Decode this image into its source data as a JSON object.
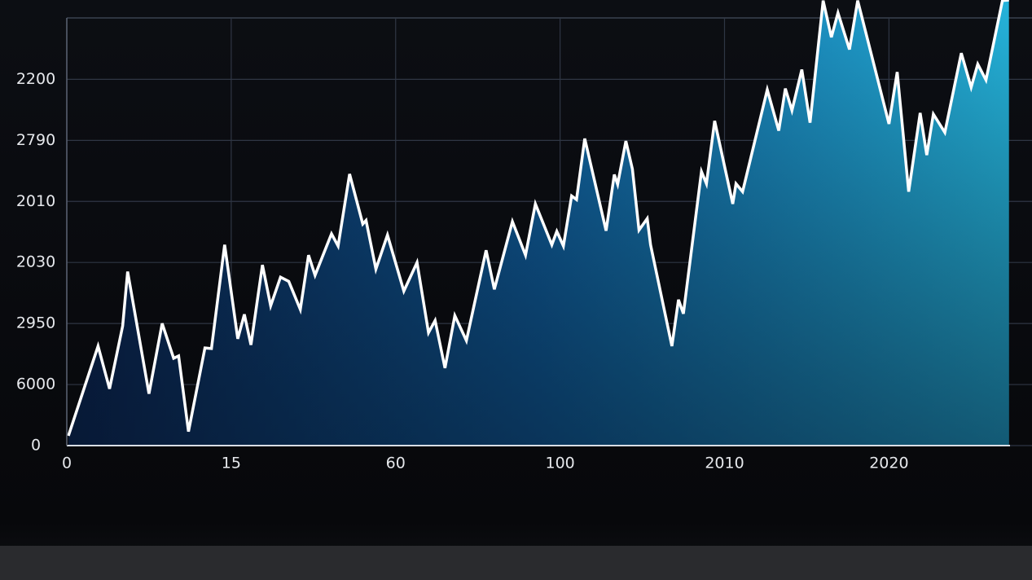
{
  "chart_data": {
    "type": "area",
    "x": [
      0.01,
      0.19,
      0.26,
      0.34,
      0.37,
      0.5,
      0.58,
      0.65,
      0.68,
      0.74,
      0.84,
      0.88,
      0.96,
      1.04,
      1.08,
      1.12,
      1.19,
      1.24,
      1.3,
      1.35,
      1.42,
      1.47,
      1.51,
      1.61,
      1.65,
      1.72,
      1.8,
      1.82,
      1.88,
      1.95,
      2.05,
      2.13,
      2.2,
      2.24,
      2.3,
      2.36,
      2.43,
      2.55,
      2.6,
      2.71,
      2.79,
      2.85,
      2.95,
      2.98,
      3.02,
      3.07,
      3.1,
      3.15,
      3.28,
      3.33,
      3.35,
      3.4,
      3.44,
      3.48,
      3.53,
      3.55,
      3.68,
      3.72,
      3.75,
      3.86,
      3.89,
      3.94,
      4.05,
      4.07,
      4.11,
      4.26,
      4.33,
      4.37,
      4.41,
      4.47,
      4.52,
      4.6,
      4.65,
      4.69,
      4.76,
      4.81,
      5.0,
      5.05,
      5.12,
      5.19,
      5.23,
      5.27,
      5.34,
      5.44,
      5.5,
      5.54,
      5.59,
      5.69,
      5.73
    ],
    "series": [
      {
        "color": "#ffffff",
        "values": [
          0.16,
          1.63,
          0.93,
          1.96,
          2.85,
          0.85,
          2.0,
          1.43,
          1.47,
          0.23,
          1.6,
          1.59,
          3.29,
          1.75,
          2.15,
          1.65,
          2.96,
          2.29,
          2.76,
          2.69,
          2.23,
          3.12,
          2.79,
          3.47,
          3.27,
          4.45,
          3.63,
          3.69,
          2.89,
          3.45,
          2.53,
          3.0,
          1.85,
          2.05,
          1.27,
          2.13,
          1.72,
          3.2,
          2.56,
          3.67,
          3.12,
          3.96,
          3.29,
          3.51,
          3.27,
          4.09,
          4.03,
          5.03,
          3.52,
          4.44,
          4.28,
          4.99,
          4.53,
          3.53,
          3.72,
          3.29,
          1.63,
          2.39,
          2.16,
          4.49,
          4.29,
          5.32,
          3.96,
          4.29,
          4.16,
          5.83,
          5.16,
          5.85,
          5.49,
          6.16,
          5.29,
          7.29,
          6.69,
          7.09,
          6.49,
          7.29,
          5.27,
          6.12,
          4.16,
          5.45,
          4.76,
          5.43,
          5.13,
          6.43,
          5.87,
          6.25,
          5.99,
          7.29,
          7.3
        ]
      }
    ],
    "xlim": [
      0,
      5.87
    ],
    "ylim": [
      0,
      7.3
    ],
    "xticks": [
      0,
      {
        "value": 1,
        "label": "15"
      },
      {
        "value": 2,
        "label": "60"
      },
      {
        "value": 3,
        "label": "100"
      },
      {
        "value": 4,
        "label": "2010"
      },
      {
        "value": 5,
        "label": "2020"
      }
    ],
    "yticks": [
      0,
      {
        "value": 1,
        "label": "6000"
      },
      {
        "value": 2,
        "label": "2950"
      },
      {
        "value": 3,
        "label": "2030"
      },
      {
        "value": 4,
        "label": "2010"
      },
      {
        "value": 5,
        "label": "2790"
      },
      {
        "value": 6,
        "label": "2200"
      }
    ],
    "grid": true
  }
}
